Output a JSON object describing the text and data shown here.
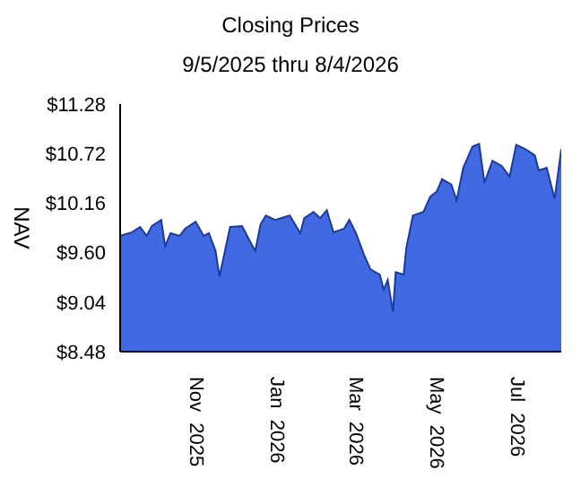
{
  "chart_data": {
    "type": "area",
    "title": "Closing Prices",
    "subtitle": "9/5/2025 thru 8/4/2026",
    "ylabel": "NAV",
    "x": [
      "2025-09-05",
      "2025-09-14",
      "2025-09-20",
      "2025-09-25",
      "2025-09-29",
      "2025-10-06",
      "2025-10-09",
      "2025-10-13",
      "2025-10-20",
      "2025-10-24",
      "2025-11-01",
      "2025-11-07",
      "2025-11-11",
      "2025-11-16",
      "2025-11-19",
      "2025-11-25",
      "2025-11-27",
      "2025-12-06",
      "2025-12-13",
      "2025-12-16",
      "2025-12-20",
      "2025-12-24",
      "2025-12-31",
      "2026-01-11",
      "2026-01-19",
      "2026-01-22",
      "2026-01-29",
      "2026-02-03",
      "2026-02-08",
      "2026-02-13",
      "2026-02-21",
      "2026-02-25",
      "2026-03-02",
      "2026-03-08",
      "2026-03-13",
      "2026-03-20",
      "2026-03-23",
      "2026-03-26",
      "2026-03-30",
      "2026-04-01",
      "2026-04-07",
      "2026-04-09",
      "2026-04-14",
      "2026-04-22",
      "2026-04-27",
      "2026-05-02",
      "2026-05-06",
      "2026-05-13",
      "2026-05-17",
      "2026-05-22",
      "2026-05-29",
      "2026-06-03",
      "2026-06-07",
      "2026-06-13",
      "2026-06-20",
      "2026-06-26",
      "2026-07-01",
      "2026-07-08",
      "2026-07-15",
      "2026-07-18",
      "2026-07-24",
      "2026-07-30",
      "2026-08-04"
    ],
    "series": [
      {
        "color": "#4169e1",
        "values": [
          9.79,
          9.83,
          9.89,
          9.79,
          9.9,
          9.97,
          9.67,
          9.82,
          9.79,
          9.87,
          9.95,
          9.79,
          9.82,
          9.62,
          9.33,
          9.75,
          9.89,
          9.9,
          9.7,
          9.62,
          9.92,
          10.02,
          9.97,
          10.02,
          9.82,
          9.99,
          10.06,
          9.99,
          10.08,
          9.83,
          9.87,
          9.97,
          9.82,
          9.58,
          9.41,
          9.35,
          9.18,
          9.29,
          8.93,
          9.38,
          9.35,
          9.65,
          10.02,
          10.06,
          10.23,
          10.29,
          10.43,
          10.37,
          10.19,
          10.56,
          10.8,
          10.83,
          10.39,
          10.64,
          10.58,
          10.46,
          10.82,
          10.77,
          10.7,
          10.53,
          10.56,
          10.21,
          10.77
        ]
      }
    ],
    "xlim": [
      "2025-09-05",
      "2026-08-04"
    ],
    "xticks": [
      {
        "value": "2025-11-01",
        "label": "Nov  2025"
      },
      {
        "value": "2026-01-01",
        "label": "Jan  2026"
      },
      {
        "value": "2026-03-01",
        "label": "Mar  2026"
      },
      {
        "value": "2026-05-01",
        "label": "May  2026"
      },
      {
        "value": "2026-07-01",
        "label": "Jul  2026"
      }
    ],
    "ylim": [
      8.48,
      11.28
    ],
    "yticks": [
      {
        "value": 8.48,
        "label": "$8.48"
      },
      {
        "value": 9.04,
        "label": "$9.04"
      },
      {
        "value": 9.6,
        "label": "$9.60"
      },
      {
        "value": 10.16,
        "label": "$10.16"
      },
      {
        "value": 10.72,
        "label": "$10.72"
      },
      {
        "value": 11.28,
        "label": "$11.28"
      }
    ],
    "grid": false,
    "legend": false
  }
}
